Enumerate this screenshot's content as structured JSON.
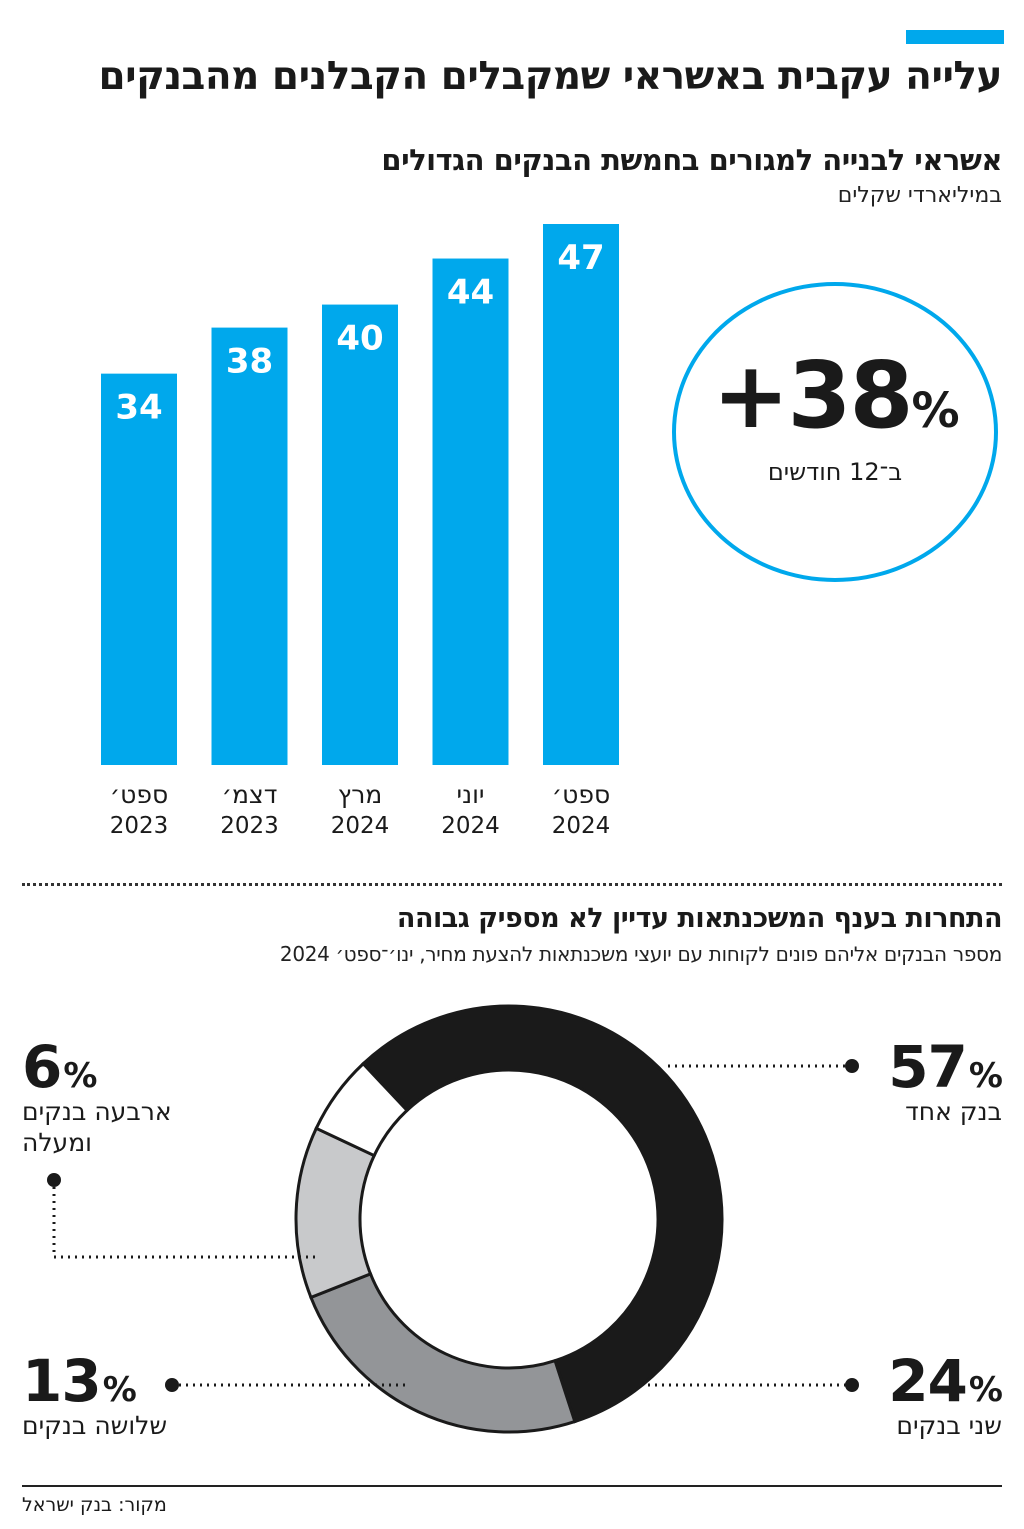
{
  "header": {
    "title": "עלייה עקבית באשראי שמקבלים הקבלנים מהבנקים",
    "accent_color": "#00a8ec"
  },
  "chart_data": [
    {
      "type": "bar",
      "title": "אשראי לבנייה למגורים בחמשת הבנקים הגדולים",
      "subtitle": "במיליארדי שקלים",
      "categories": [
        {
          "month": "ספט׳",
          "year": "2023"
        },
        {
          "month": "דצמ׳",
          "year": "2023"
        },
        {
          "month": "מרץ",
          "year": "2024"
        },
        {
          "month": "יוני",
          "year": "2024"
        },
        {
          "month": "ספט׳",
          "year": "2024"
        }
      ],
      "values": [
        34,
        38,
        40,
        44,
        47
      ],
      "bar_color": "#00a8ec",
      "ylim": [
        0,
        47
      ],
      "grid": false,
      "annotation": {
        "value": "+38",
        "unit": "%",
        "label": "ב־12 חודשים",
        "color": "#00a8ec"
      }
    },
    {
      "type": "pie",
      "title": "התחרות בענף המשכנתאות עדיין לא מספיק גבוהה",
      "subtitle": "מספר הבנקים אליהם פונים לקוחות עם יועצי משכנתאות להצעת מחיר, ינו׳־ספט׳ 2024",
      "slices": [
        {
          "label": "בנק אחד",
          "value": 57,
          "display": "57",
          "color": "#1a1a1a"
        },
        {
          "label": "שני בנקים",
          "value": 24,
          "display": "24",
          "color": "#939598"
        },
        {
          "label": "שלושה בנקים",
          "value": 13,
          "display": "13",
          "color": "#c8c9cb"
        },
        {
          "label": "ארבעה בנקים ומעלה",
          "value": 6,
          "display": "6",
          "color": "#ffffff"
        }
      ],
      "unit": "%"
    }
  ],
  "footer": {
    "source": "מקור: בנק ישראל"
  }
}
